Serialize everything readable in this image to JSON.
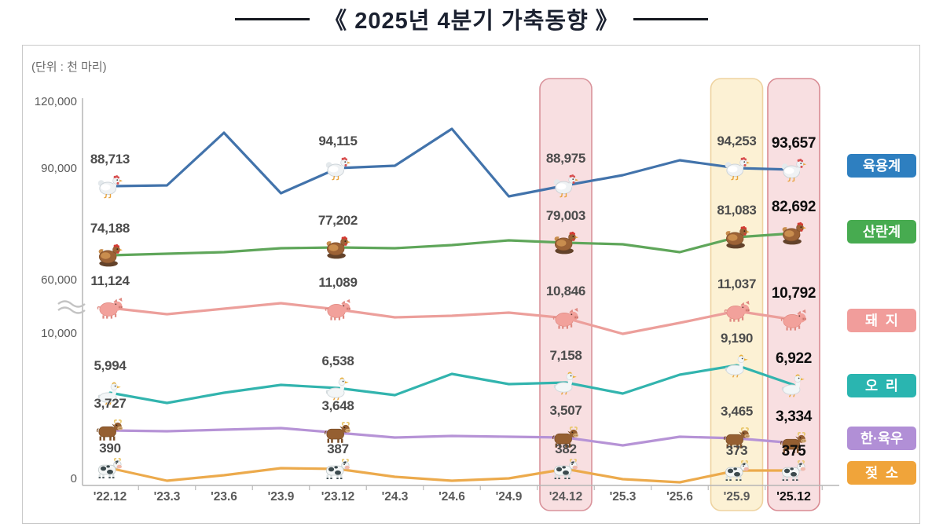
{
  "title": "《 2025년 4분기 가축동향 》",
  "unit_label": "(단위 : 천 마리)",
  "y_axis": {
    "ticks": [
      "120,000",
      "90,000",
      "60,000",
      "10,000",
      "0"
    ],
    "break_symbol": "≈"
  },
  "x_axis": {
    "categories": [
      "'22.12",
      "'23.3",
      "'23.6",
      "'23.9",
      "'23.12",
      "'24.3",
      "'24.6",
      "'24.9",
      "'24.12",
      "'25.3",
      "'25.6",
      "'25.9",
      "'25.12"
    ]
  },
  "highlights": [
    {
      "category": "'24.12",
      "fill": "#f8dfe1",
      "border": "#d9939b",
      "bold_label": false
    },
    {
      "category": "'25.9",
      "fill": "#fcf1d4",
      "border": "#eed3a0",
      "bold_label": false
    },
    {
      "category": "'25.12",
      "fill": "#f8dfe1",
      "border": "#d98b93",
      "bold_label": true
    }
  ],
  "chart_data": {
    "type": "line",
    "title": "2025년 4분기 가축동향",
    "unit": "천 마리",
    "x": [
      "'22.12",
      "'23.3",
      "'23.6",
      "'23.9",
      "'23.12",
      "'24.3",
      "'24.6",
      "'24.9",
      "'24.12",
      "'25.3",
      "'25.6",
      "'25.9",
      "'25.12"
    ],
    "axis_note": "y-axis break between 10,000 and 60,000",
    "labeled_categories": [
      "'22.12",
      "'23.12",
      "'24.12",
      "'25.9",
      "'25.12"
    ],
    "series": [
      {
        "key": "broiler",
        "name": "육용계",
        "icon": "broiler-chicken",
        "color": "#4273ab",
        "values": [
          88713,
          89000,
          105000,
          86500,
          94115,
          95000,
          106000,
          85500,
          88975,
          92000,
          96500,
          94253,
          93657
        ],
        "labeled_values": {
          "'22.12": 88713,
          "'23.12": 94115,
          "'24.12": 88975,
          "'25.9": 94253,
          "'25.12": 93657
        }
      },
      {
        "key": "layer",
        "name": "산란계",
        "icon": "laying-hen",
        "color": "#5fa65a",
        "values": [
          74188,
          74800,
          75500,
          76800,
          77202,
          77000,
          78200,
          80000,
          79003,
          78500,
          75500,
          81083,
          82692
        ],
        "labeled_values": {
          "'22.12": 74188,
          "'23.12": 77202,
          "'24.12": 79003,
          "'25.9": 81083,
          "'25.12": 82692
        }
      },
      {
        "key": "pig",
        "name": "돼지",
        "icon": "pig",
        "color": "#ec9f9b",
        "values": [
          11124,
          10950,
          11100,
          11250,
          11089,
          10850,
          10900,
          11000,
          10846,
          10400,
          10700,
          11037,
          10792
        ],
        "labeled_values": {
          "'22.12": 11124,
          "'23.12": 11089,
          "'24.12": 10846,
          "'25.9": 11037,
          "'25.12": 10792
        }
      },
      {
        "key": "duck",
        "name": "오리",
        "icon": "duck",
        "color": "#32b4ae",
        "values": [
          5994,
          4800,
          6000,
          6900,
          6538,
          5700,
          8200,
          7000,
          7158,
          5900,
          8100,
          9190,
          6922
        ],
        "labeled_values": {
          "'22.12": 5994,
          "'23.12": 6538,
          "'24.12": 7158,
          "'25.9": 9190,
          "'25.12": 6922
        }
      },
      {
        "key": "hanwoo",
        "name": "한·육우",
        "icon": "korean-cattle",
        "color": "#b693d6",
        "values": [
          3727,
          3700,
          3760,
          3800,
          3648,
          3500,
          3560,
          3530,
          3507,
          3260,
          3520,
          3465,
          3334
        ],
        "labeled_values": {
          "'22.12": 3727,
          "'23.12": 3648,
          "'24.12": 3507,
          "'25.9": 3465,
          "'25.12": 3334
        }
      },
      {
        "key": "dairy",
        "name": "젖소",
        "icon": "dairy-cow",
        "color": "#ecaa4c",
        "values": [
          390,
          300,
          340,
          390,
          387,
          330,
          300,
          320,
          382,
          310,
          290,
          373,
          375
        ],
        "labeled_values": {
          "'22.12": 390,
          "'23.12": 387,
          "'24.12": 382,
          "'25.9": 373,
          "'25.12": 375
        }
      }
    ],
    "legend_position": "right"
  },
  "legend": [
    {
      "key": "broiler",
      "label": "육용계",
      "color": "#2e7fc0"
    },
    {
      "key": "layer",
      "label": "산란계",
      "color": "#47ab50"
    },
    {
      "key": "pig",
      "label": "돼  지",
      "color": "#f19d9b"
    },
    {
      "key": "duck",
      "label": "오  리",
      "color": "#2ab5b0"
    },
    {
      "key": "hanwoo",
      "label": "한·육우",
      "color": "#b18fd6"
    },
    {
      "key": "dairy",
      "label": "젖  소",
      "color": "#f0a43a"
    }
  ]
}
